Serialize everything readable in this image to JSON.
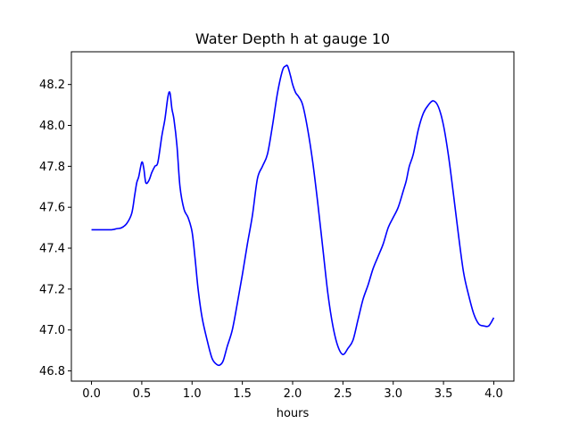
{
  "chart_data": {
    "type": "line",
    "title": "Water Depth h at gauge 10",
    "xlabel": "hours",
    "ylabel": "",
    "xlim": [
      -0.2,
      4.2
    ],
    "ylim": [
      46.75,
      48.36
    ],
    "xticks": [
      0.0,
      0.5,
      1.0,
      1.5,
      2.0,
      2.5,
      3.0,
      3.5,
      4.0
    ],
    "xtick_labels": [
      "0.0",
      "0.5",
      "1.0",
      "1.5",
      "2.0",
      "2.5",
      "3.0",
      "3.5",
      "4.0"
    ],
    "yticks": [
      46.8,
      47.0,
      47.2,
      47.4,
      47.6,
      47.8,
      48.0,
      48.2
    ],
    "ytick_labels": [
      "46.8",
      "47.0",
      "47.2",
      "47.4",
      "47.6",
      "47.8",
      "48.0",
      "48.2"
    ],
    "grid": false,
    "legend": "none",
    "series": [
      {
        "color": "#0000ff",
        "x": [
          0.0,
          0.1,
          0.2,
          0.25,
          0.3,
          0.35,
          0.4,
          0.43,
          0.45,
          0.47,
          0.5,
          0.52,
          0.54,
          0.57,
          0.6,
          0.63,
          0.66,
          0.7,
          0.73,
          0.76,
          0.78,
          0.8,
          0.82,
          0.85,
          0.88,
          0.92,
          0.96,
          1.0,
          1.03,
          1.06,
          1.1,
          1.15,
          1.2,
          1.25,
          1.28,
          1.31,
          1.35,
          1.4,
          1.45,
          1.5,
          1.55,
          1.6,
          1.65,
          1.7,
          1.75,
          1.8,
          1.85,
          1.9,
          1.93,
          1.95,
          1.98,
          2.0,
          2.03,
          2.06,
          2.1,
          2.15,
          2.2,
          2.25,
          2.3,
          2.35,
          2.4,
          2.45,
          2.5,
          2.55,
          2.6,
          2.65,
          2.7,
          2.75,
          2.8,
          2.85,
          2.9,
          2.95,
          3.0,
          3.05,
          3.1,
          3.13,
          3.16,
          3.2,
          3.25,
          3.3,
          3.35,
          3.4,
          3.45,
          3.5,
          3.55,
          3.6,
          3.65,
          3.7,
          3.75,
          3.8,
          3.85,
          3.9,
          3.95,
          4.0
        ],
        "values": [
          47.49,
          47.49,
          47.49,
          47.495,
          47.5,
          47.52,
          47.57,
          47.66,
          47.72,
          47.75,
          47.82,
          47.79,
          47.72,
          47.73,
          47.77,
          47.8,
          47.82,
          47.95,
          48.03,
          48.14,
          48.16,
          48.08,
          48.03,
          47.9,
          47.7,
          47.59,
          47.55,
          47.48,
          47.35,
          47.2,
          47.06,
          46.95,
          46.86,
          46.83,
          46.83,
          46.85,
          46.92,
          47.0,
          47.13,
          47.27,
          47.42,
          47.56,
          47.74,
          47.8,
          47.86,
          48.0,
          48.16,
          48.27,
          48.29,
          48.29,
          48.24,
          48.2,
          48.16,
          48.14,
          48.1,
          47.98,
          47.82,
          47.62,
          47.4,
          47.18,
          47.02,
          46.92,
          46.88,
          46.91,
          46.95,
          47.05,
          47.15,
          47.22,
          47.3,
          47.36,
          47.42,
          47.5,
          47.55,
          47.6,
          47.68,
          47.73,
          47.8,
          47.86,
          47.98,
          48.06,
          48.1,
          48.12,
          48.09,
          48.0,
          47.85,
          47.66,
          47.46,
          47.28,
          47.17,
          47.08,
          47.03,
          47.02,
          47.02,
          47.06
        ]
      }
    ]
  }
}
